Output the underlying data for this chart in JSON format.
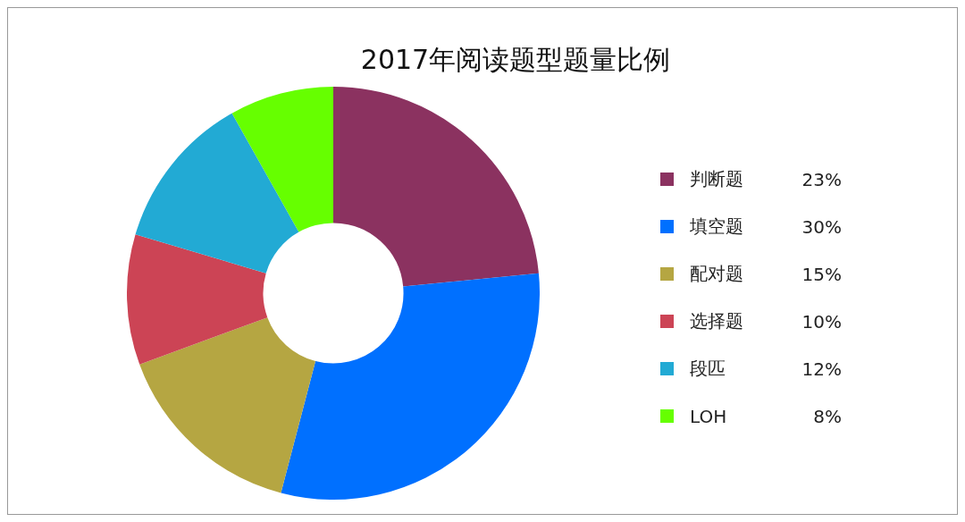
{
  "chart_data": {
    "type": "donut",
    "title": "2017年阅读题型题量比例",
    "categories": [
      "判断题",
      "填空题",
      "配对题",
      "选择题",
      "段匹",
      "LOH"
    ],
    "values": [
      23,
      30,
      15,
      10,
      12,
      8
    ],
    "value_labels": [
      "23%",
      "30%",
      "15%",
      "10%",
      "12%",
      "8%"
    ],
    "colors": [
      "#8b3260",
      "#0070ff",
      "#b5a642",
      "#cc4455",
      "#22aad4",
      "#66ff00"
    ],
    "legend": "right"
  }
}
